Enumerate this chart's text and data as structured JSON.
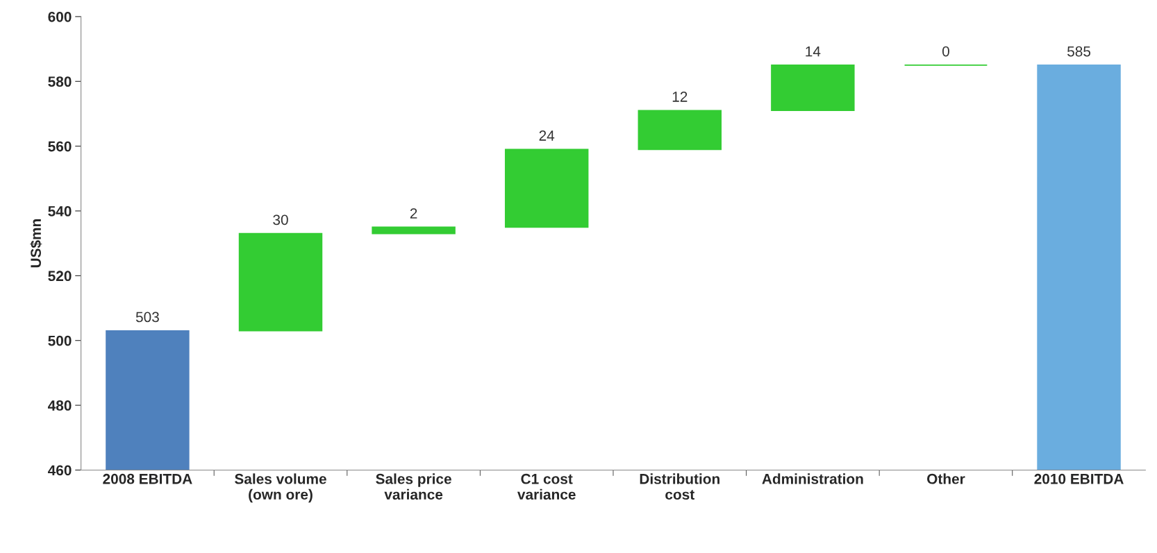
{
  "chart_data": {
    "type": "bar",
    "ylabel": "US$mn",
    "categories": [
      "2008 EBITDA",
      "Sales volume\n(own ore)",
      "Sales price\nvariance",
      "C1 cost\nvariance",
      "Distribution\ncost",
      "Administration",
      "Other",
      "2010 EBITDA"
    ],
    "values": [
      503,
      30,
      2,
      24,
      12,
      14,
      0,
      585
    ],
    "base": [
      0,
      503,
      533,
      535,
      559,
      571,
      585,
      0
    ],
    "colors": [
      "#4f81bd",
      "#33cc33",
      "#33cc33",
      "#33cc33",
      "#33cc33",
      "#33cc33",
      "#33cc33",
      "#6aaddf"
    ],
    "ylim": [
      460,
      600
    ],
    "yticks": [
      460,
      480,
      500,
      520,
      540,
      560,
      580,
      600
    ],
    "data_labels": true,
    "grid": false,
    "legend": false
  }
}
